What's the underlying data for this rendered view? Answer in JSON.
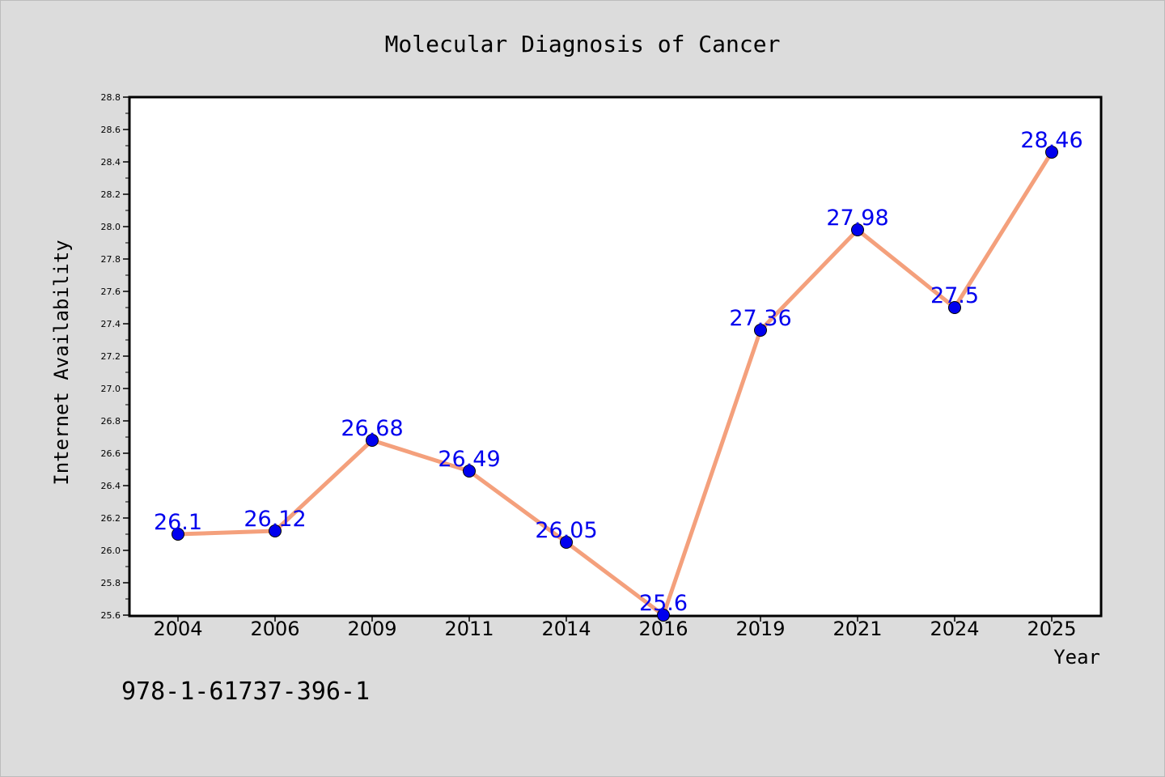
{
  "chart_data": {
    "type": "line",
    "title": "Molecular Diagnosis of Cancer",
    "xlabel": "Year",
    "ylabel": "Internet Availability",
    "categories": [
      "2004",
      "2006",
      "2009",
      "2011",
      "2014",
      "2016",
      "2019",
      "2021",
      "2024",
      "2025"
    ],
    "values": [
      26.1,
      26.12,
      26.68,
      26.49,
      26.05,
      25.6,
      27.36,
      27.98,
      27.5,
      28.46
    ],
    "data_labels": [
      "26.1",
      "26.12",
      "26.68",
      "26.49",
      "26.05",
      "25.6",
      "27.36",
      "27.98",
      "27.5",
      "28.46"
    ],
    "ylim": [
      25.6,
      28.8
    ],
    "yticks": [
      "25.6",
      "25.8",
      "26.0",
      "26.2",
      "26.4",
      "26.6",
      "26.8",
      "27.0",
      "27.2",
      "27.4",
      "27.6",
      "27.8",
      "28.0",
      "28.2",
      "28.4",
      "28.6",
      "28.8"
    ],
    "grid": false,
    "legend": "none",
    "line_color": "#f4a07c",
    "marker_color": "#0000ee",
    "label_color": "#0000ee"
  },
  "footer_text": "978-1-61737-396-1"
}
